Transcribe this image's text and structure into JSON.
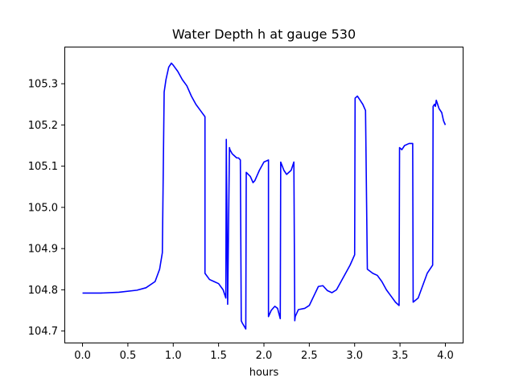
{
  "chart_data": {
    "type": "line",
    "title": "Water Depth h at gauge 530",
    "xlabel": "hours",
    "ylabel": "",
    "xlim": [
      -0.2,
      4.2
    ],
    "ylim": [
      104.67,
      105.39
    ],
    "xticks": [
      0.0,
      0.5,
      1.0,
      1.5,
      2.0,
      2.5,
      3.0,
      3.5,
      4.0
    ],
    "xtick_labels": [
      "0.0",
      "0.5",
      "1.0",
      "1.5",
      "2.0",
      "2.5",
      "3.0",
      "3.5",
      "4.0"
    ],
    "yticks": [
      104.7,
      104.8,
      104.9,
      105.0,
      105.1,
      105.2,
      105.3
    ],
    "ytick_labels": [
      "104.7",
      "104.8",
      "104.9",
      "105.0",
      "105.1",
      "105.2",
      "105.3"
    ],
    "grid": false,
    "series": [
      {
        "color": "#0000ff",
        "x": [
          0.0,
          0.2,
          0.4,
          0.6,
          0.7,
          0.8,
          0.85,
          0.88,
          0.9,
          0.92,
          0.95,
          0.98,
          1.0,
          1.05,
          1.1,
          1.15,
          1.2,
          1.25,
          1.3,
          1.35,
          1.35,
          1.4,
          1.45,
          1.5,
          1.55,
          1.58,
          1.585,
          1.6,
          1.62,
          1.625,
          1.65,
          1.7,
          1.72,
          1.74,
          1.75,
          1.76,
          1.8,
          1.805,
          1.85,
          1.88,
          1.9,
          1.95,
          2.0,
          2.05,
          2.05,
          2.08,
          2.12,
          2.15,
          2.18,
          2.185,
          2.22,
          2.25,
          2.3,
          2.33,
          2.34,
          2.345,
          2.38,
          2.45,
          2.5,
          2.55,
          2.6,
          2.65,
          2.7,
          2.75,
          2.8,
          2.85,
          2.9,
          2.95,
          3.0,
          3.005,
          3.03,
          3.06,
          3.09,
          3.12,
          3.14,
          3.2,
          3.25,
          3.3,
          3.35,
          3.4,
          3.45,
          3.49,
          3.495,
          3.52,
          3.55,
          3.6,
          3.64,
          3.645,
          3.7,
          3.75,
          3.8,
          3.86,
          3.865,
          3.88,
          3.89,
          3.9,
          3.93,
          3.96,
          3.98,
          4.0
        ],
        "y": [
          104.792,
          104.792,
          104.794,
          104.799,
          104.805,
          104.82,
          104.85,
          104.89,
          105.28,
          105.31,
          105.34,
          105.35,
          105.345,
          105.33,
          105.31,
          105.295,
          105.27,
          105.25,
          105.235,
          105.22,
          104.84,
          104.825,
          104.82,
          104.815,
          104.8,
          104.78,
          105.165,
          104.765,
          105.145,
          105.14,
          105.13,
          105.12,
          105.12,
          105.115,
          104.725,
          104.72,
          104.705,
          105.085,
          105.075,
          105.06,
          105.065,
          105.09,
          105.11,
          105.115,
          104.735,
          104.75,
          104.76,
          104.755,
          104.73,
          105.11,
          105.09,
          105.08,
          105.09,
          105.11,
          104.725,
          104.735,
          104.752,
          104.755,
          104.762,
          104.785,
          104.808,
          104.81,
          104.798,
          104.793,
          104.8,
          104.82,
          104.84,
          104.86,
          104.885,
          105.265,
          105.27,
          105.26,
          105.25,
          105.235,
          104.85,
          104.84,
          104.835,
          104.82,
          104.8,
          104.785,
          104.77,
          104.762,
          105.145,
          105.14,
          105.15,
          105.155,
          105.155,
          104.77,
          104.78,
          104.81,
          104.84,
          104.86,
          105.245,
          105.25,
          105.245,
          105.26,
          105.24,
          105.23,
          105.21,
          105.2
        ]
      }
    ]
  }
}
